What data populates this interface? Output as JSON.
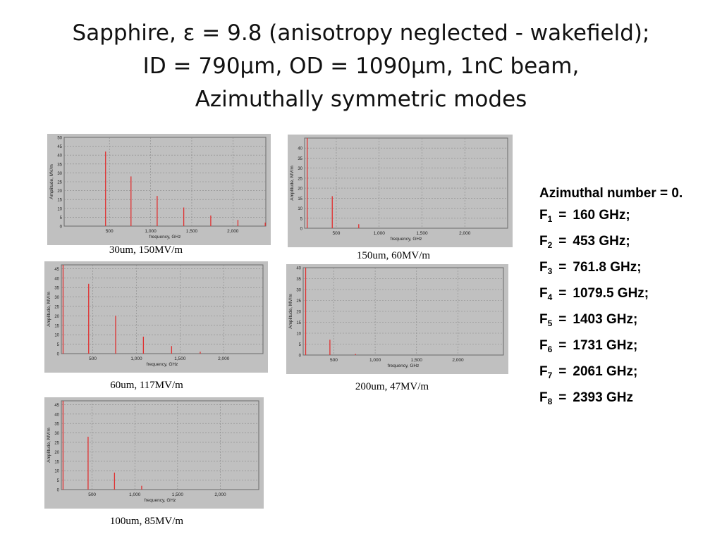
{
  "title": {
    "line1": "Sapphire, ε = 9.8 (anisotropy neglected - wakefield);",
    "line2": "ID = 790µm, OD = 1090µm, 1nC beam,",
    "line3": "Azimuthally symmetric modes"
  },
  "info": {
    "heading": "Azimuthal number = 0.",
    "modes": [
      {
        "label": "F",
        "sub": "1",
        "sep": "=",
        "value": "160 GHz;"
      },
      {
        "label": "F",
        "sub": "2",
        "sep": "=",
        "value": "453 GHz;"
      },
      {
        "label": "F",
        "sub": "3",
        "sep": "=",
        "value": "761.8 GHz;"
      },
      {
        "label": "F",
        "sub": "4",
        "sep": "=",
        "value": "1079.5 GHz;"
      },
      {
        "label": "F",
        "sub": "5",
        "sep": "=",
        "value": "1403 GHz;"
      },
      {
        "label": "F",
        "sub": "6",
        "sep": "=",
        "value": "1731 GHz;"
      },
      {
        "label": "F",
        "sub": "7",
        "sep": "=",
        "value": "2061 GHz;"
      },
      {
        "label": "F",
        "sub": "8",
        "sep": "=",
        "value": "2393 GHz"
      }
    ]
  },
  "colors": {
    "stem": "#e03030",
    "plot_bg": "#c0c0c0",
    "grid": "#888888"
  },
  "chart_data": [
    {
      "type": "bar",
      "caption": "30um, 150MV/m",
      "xlabel": "frequency, GHz",
      "ylabel": "Amplitude, MV/m",
      "xlim": [
        -50,
        2400
      ],
      "ylim": [
        0,
        50
      ],
      "xticks": [
        500,
        1000,
        1500,
        2000
      ],
      "xtick_labels": [
        "500",
        "1,000",
        "1,500",
        "2,000"
      ],
      "yticks": [
        0,
        5,
        10,
        15,
        20,
        25,
        30,
        35,
        40,
        45,
        50
      ],
      "x": [
        453,
        762,
        1080,
        1403,
        1731,
        2061,
        2393
      ],
      "values": [
        42,
        28,
        17,
        10.5,
        6,
        3.5,
        2
      ]
    },
    {
      "type": "bar",
      "caption": "150um, 60MV/m",
      "xlabel": "frequency, GHz",
      "ylabel": "Amplitude, MV/m",
      "xlim": [
        130,
        2500
      ],
      "ylim": [
        0,
        45
      ],
      "xticks": [
        500,
        1000,
        1500,
        2000
      ],
      "xtick_labels": [
        "500",
        "1,000",
        "1,500",
        "2,000"
      ],
      "yticks": [
        0,
        5,
        10,
        15,
        20,
        25,
        30,
        35,
        40
      ],
      "x": [
        160,
        453,
        762
      ],
      "values": [
        45,
        16,
        2
      ]
    },
    {
      "type": "bar",
      "caption": "60um, 117MV/m",
      "xlabel": "frequency, GHz",
      "ylabel": "Amplitude, MV/m",
      "xlim": [
        140,
        2450
      ],
      "ylim": [
        0,
        47
      ],
      "xticks": [
        500,
        1000,
        1500,
        2000
      ],
      "xtick_labels": [
        "500",
        "1,000",
        "1,500",
        "2,000"
      ],
      "yticks": [
        0,
        5,
        10,
        15,
        20,
        25,
        30,
        35,
        40,
        45
      ],
      "x": [
        160,
        453,
        762,
        1080,
        1403,
        1731
      ],
      "values": [
        47,
        37,
        20,
        9,
        4,
        1
      ]
    },
    {
      "type": "bar",
      "caption": "200um, 47MV/m",
      "xlabel": "frequency, GHz",
      "ylabel": "Amplitude, MV/m",
      "xlim": [
        130,
        2550
      ],
      "ylim": [
        0,
        40
      ],
      "xticks": [
        500,
        1000,
        1500,
        2000
      ],
      "xtick_labels": [
        "500",
        "1,000",
        "1,500",
        "2,000"
      ],
      "yticks": [
        0,
        5,
        10,
        15,
        20,
        25,
        30,
        35,
        40
      ],
      "x": [
        160,
        453,
        762
      ],
      "values": [
        40,
        7,
        0.5
      ]
    },
    {
      "type": "bar",
      "caption": "100um, 85MV/m",
      "xlabel": "frequency, GHz",
      "ylabel": "Amplitude, MV/m",
      "xlim": [
        140,
        2450
      ],
      "ylim": [
        0,
        47
      ],
      "xticks": [
        500,
        1000,
        1500,
        2000
      ],
      "xtick_labels": [
        "500",
        "1,000",
        "1,500",
        "2,000"
      ],
      "yticks": [
        0,
        5,
        10,
        15,
        20,
        25,
        30,
        35,
        40,
        45
      ],
      "x": [
        160,
        453,
        762,
        1080
      ],
      "values": [
        47,
        28,
        9,
        2
      ]
    }
  ]
}
